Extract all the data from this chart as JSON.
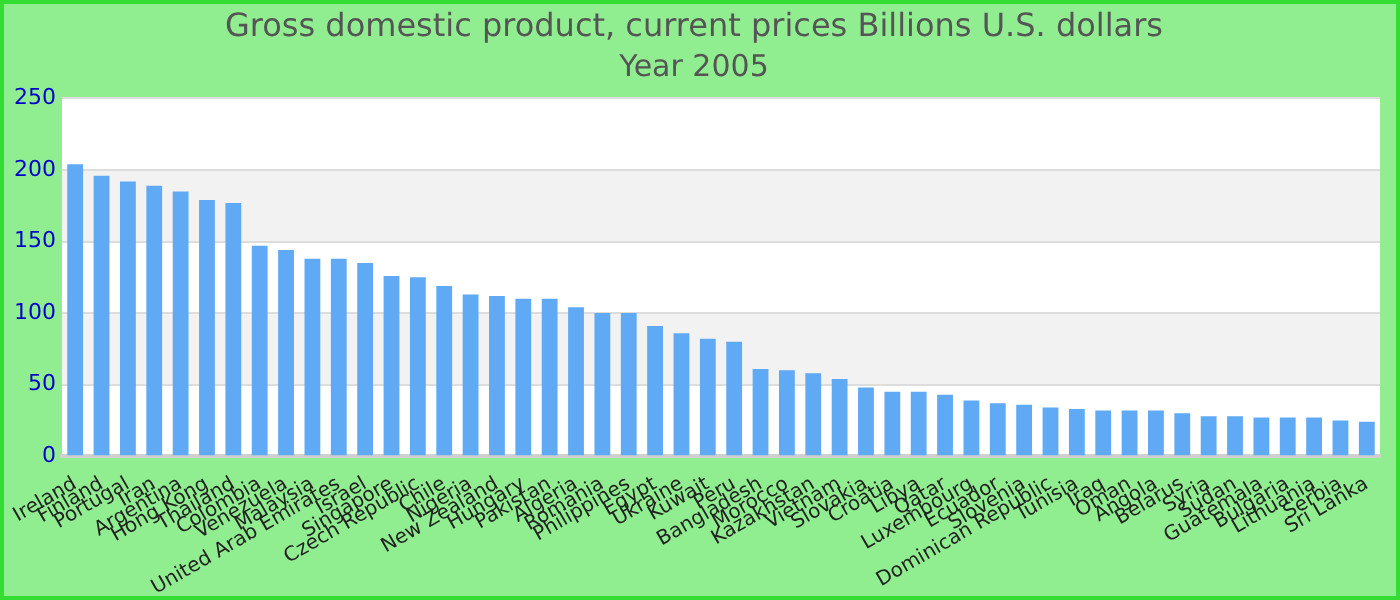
{
  "chart_data": {
    "type": "bar",
    "title": "Gross domestic product, current prices Billions U.S. dollars",
    "subtitle": "Year 2005",
    "categories": [
      "Ireland",
      "Finland",
      "Portugal",
      "Iran",
      "Argentina",
      "Hong Kong",
      "Thailand",
      "Colombia",
      "Venezuela",
      "Malaysia",
      "United Arab Emirates",
      "Israel",
      "Singapore",
      "Czech Republic",
      "Chile",
      "Nigeria",
      "New Zealand",
      "Hungary",
      "Pakistan",
      "Algeria",
      "Romania",
      "Philippines",
      "Egypt",
      "Ukraine",
      "Kuwait",
      "Peru",
      "Bangladesh",
      "Morocco",
      "Kazakhstan",
      "Vietnam",
      "Slovakia",
      "Croatia",
      "Libya",
      "Qatar",
      "Luxembourg",
      "Ecuador",
      "Slovenia",
      "Dominican Republic",
      "Tunisia",
      "Iraq",
      "Oman",
      "Angola",
      "Belarus",
      "Syria",
      "Sudan",
      "Guatemala",
      "Bulgaria",
      "Lithuania",
      "Serbia",
      "Sri Lanka"
    ],
    "values": [
      204,
      196,
      192,
      189,
      185,
      179,
      177,
      147,
      144,
      138,
      138,
      135,
      126,
      125,
      119,
      113,
      112,
      110,
      110,
      104,
      100,
      100,
      91,
      86,
      82,
      80,
      61,
      60,
      58,
      54,
      48,
      45,
      45,
      43,
      39,
      37,
      36,
      34,
      33,
      32,
      32,
      32,
      30,
      28,
      28,
      27,
      27,
      27,
      25,
      24
    ],
    "color": "#60a9f4",
    "ylim": [
      0,
      250
    ],
    "yticks": [
      0,
      50,
      100,
      150,
      200,
      250
    ],
    "grid": "y",
    "legend": false
  }
}
